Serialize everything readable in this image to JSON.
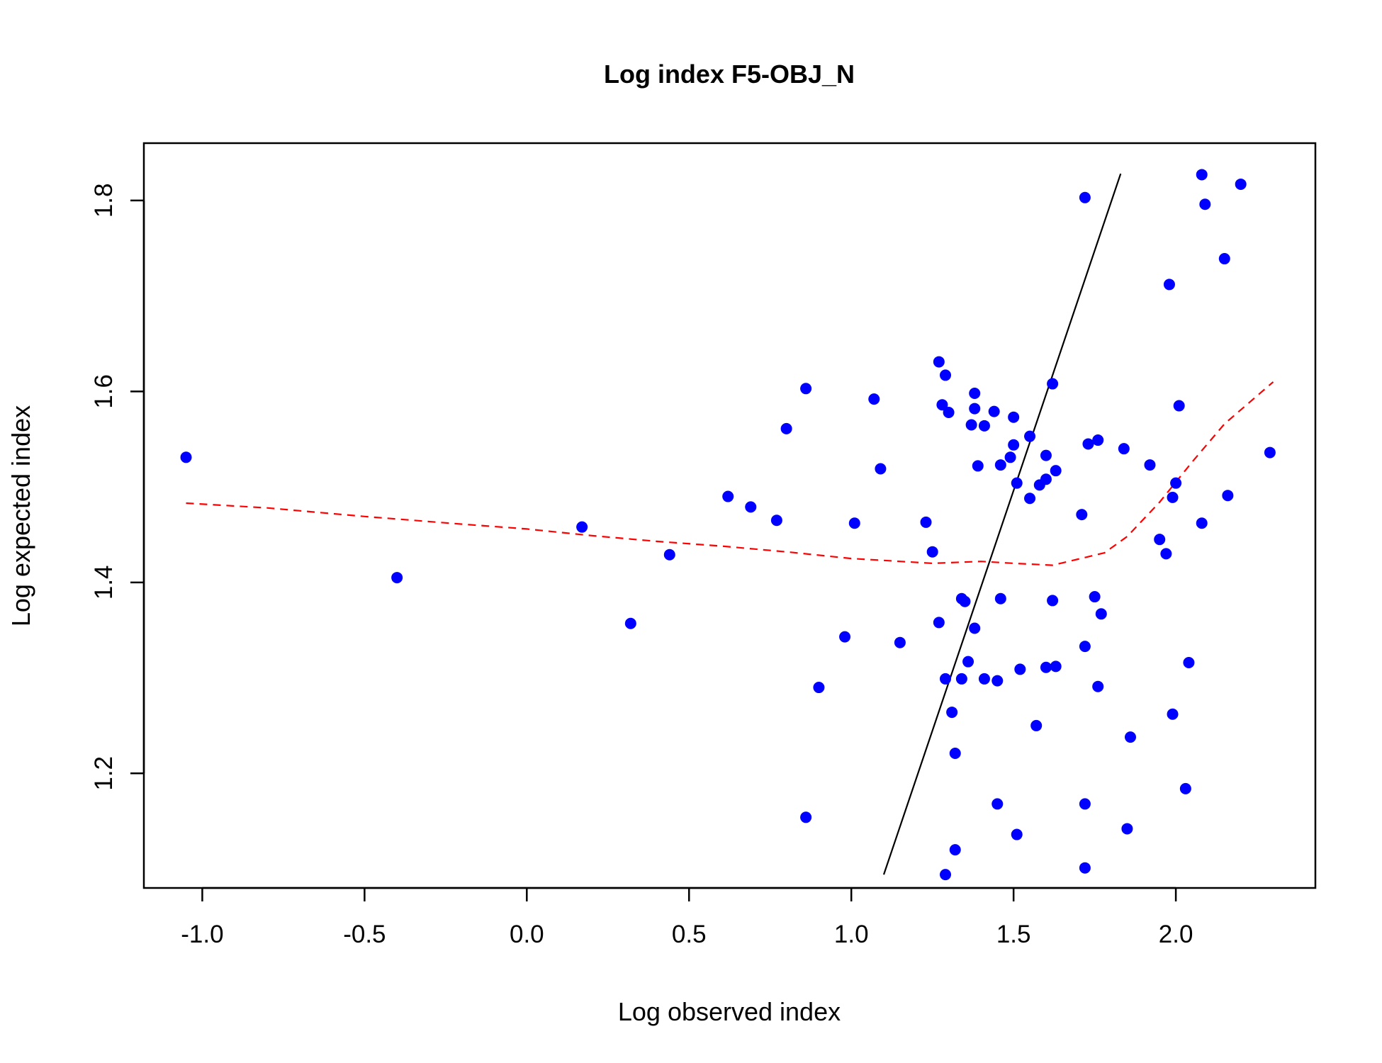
{
  "chart_data": {
    "type": "scatter",
    "title": "Log index F5-OBJ_N",
    "xlabel": "Log observed index",
    "ylabel": "Log expected index",
    "xlim": [
      -1.18,
      2.43
    ],
    "ylim": [
      1.08,
      1.86
    ],
    "x_ticks": [
      -1.0,
      -0.5,
      0.0,
      0.5,
      1.0,
      1.5,
      2.0
    ],
    "x_tick_labels": [
      "-1.0",
      "-0.5",
      "0.0",
      "0.5",
      "1.0",
      "1.5",
      "2.0"
    ],
    "y_ticks": [
      1.2,
      1.4,
      1.6,
      1.8
    ],
    "y_tick_labels": [
      "1.2",
      "1.4",
      "1.6",
      "1.8"
    ],
    "grid": false,
    "point_color": "#0000ff",
    "points": [
      [
        -1.05,
        1.531
      ],
      [
        -0.4,
        1.405
      ],
      [
        0.17,
        1.458
      ],
      [
        0.32,
        1.357
      ],
      [
        0.44,
        1.429
      ],
      [
        0.62,
        1.49
      ],
      [
        0.69,
        1.479
      ],
      [
        0.77,
        1.465
      ],
      [
        0.8,
        1.561
      ],
      [
        0.86,
        1.603
      ],
      [
        0.86,
        1.154
      ],
      [
        0.9,
        1.29
      ],
      [
        0.98,
        1.343
      ],
      [
        1.01,
        1.462
      ],
      [
        1.07,
        1.592
      ],
      [
        1.09,
        1.519
      ],
      [
        1.15,
        1.337
      ],
      [
        1.23,
        1.463
      ],
      [
        1.25,
        1.432
      ],
      [
        1.27,
        1.631
      ],
      [
        1.27,
        1.358
      ],
      [
        1.28,
        1.586
      ],
      [
        1.29,
        1.617
      ],
      [
        1.29,
        1.299
      ],
      [
        1.29,
        1.094
      ],
      [
        1.3,
        1.578
      ],
      [
        1.31,
        1.264
      ],
      [
        1.32,
        1.221
      ],
      [
        1.32,
        1.12
      ],
      [
        1.34,
        1.383
      ],
      [
        1.34,
        1.299
      ],
      [
        1.35,
        1.38
      ],
      [
        1.36,
        1.317
      ],
      [
        1.37,
        1.565
      ],
      [
        1.38,
        1.352
      ],
      [
        1.38,
        1.598
      ],
      [
        1.38,
        1.582
      ],
      [
        1.39,
        1.522
      ],
      [
        1.41,
        1.564
      ],
      [
        1.41,
        1.299
      ],
      [
        1.44,
        1.579
      ],
      [
        1.45,
        1.297
      ],
      [
        1.45,
        1.168
      ],
      [
        1.46,
        1.523
      ],
      [
        1.46,
        1.383
      ],
      [
        1.49,
        1.531
      ],
      [
        1.5,
        1.544
      ],
      [
        1.5,
        1.573
      ],
      [
        1.51,
        1.504
      ],
      [
        1.51,
        1.136
      ],
      [
        1.52,
        1.309
      ],
      [
        1.55,
        1.553
      ],
      [
        1.55,
        1.488
      ],
      [
        1.57,
        1.25
      ],
      [
        1.58,
        1.502
      ],
      [
        1.6,
        1.533
      ],
      [
        1.6,
        1.508
      ],
      [
        1.6,
        1.311
      ],
      [
        1.62,
        1.381
      ],
      [
        1.62,
        1.608
      ],
      [
        1.63,
        1.517
      ],
      [
        1.63,
        1.312
      ],
      [
        1.71,
        1.471
      ],
      [
        1.72,
        1.803
      ],
      [
        1.72,
        1.333
      ],
      [
        1.72,
        1.168
      ],
      [
        1.72,
        1.101
      ],
      [
        1.73,
        1.545
      ],
      [
        1.75,
        1.385
      ],
      [
        1.76,
        1.549
      ],
      [
        1.76,
        1.291
      ],
      [
        1.77,
        1.367
      ],
      [
        1.84,
        1.54
      ],
      [
        1.85,
        1.142
      ],
      [
        1.86,
        1.238
      ],
      [
        1.92,
        1.523
      ],
      [
        1.95,
        1.445
      ],
      [
        1.97,
        1.43
      ],
      [
        1.98,
        1.712
      ],
      [
        1.99,
        1.489
      ],
      [
        1.99,
        1.262
      ],
      [
        2.0,
        1.504
      ],
      [
        2.01,
        1.585
      ],
      [
        2.03,
        1.184
      ],
      [
        2.04,
        1.316
      ],
      [
        2.08,
        1.827
      ],
      [
        2.08,
        1.462
      ],
      [
        2.09,
        1.796
      ],
      [
        2.15,
        1.739
      ],
      [
        2.16,
        1.491
      ],
      [
        2.2,
        1.817
      ],
      [
        2.29,
        1.536
      ]
    ],
    "reference_line": {
      "color": "#000000",
      "x": [
        1.1,
        1.83
      ],
      "y": [
        1.094,
        1.828
      ]
    },
    "smooth_line": {
      "color": "#ff0000",
      "style": "dashed",
      "x": [
        -1.05,
        -0.8,
        -0.5,
        -0.2,
        0.0,
        0.2,
        0.4,
        0.6,
        0.8,
        1.0,
        1.1,
        1.25,
        1.4,
        1.5,
        1.62,
        1.78,
        1.85,
        1.95,
        2.05,
        2.15,
        2.3
      ],
      "y": [
        1.483,
        1.478,
        1.469,
        1.461,
        1.456,
        1.449,
        1.443,
        1.438,
        1.432,
        1.425,
        1.423,
        1.42,
        1.422,
        1.42,
        1.418,
        1.431,
        1.448,
        1.484,
        1.526,
        1.566,
        1.61
      ]
    }
  }
}
